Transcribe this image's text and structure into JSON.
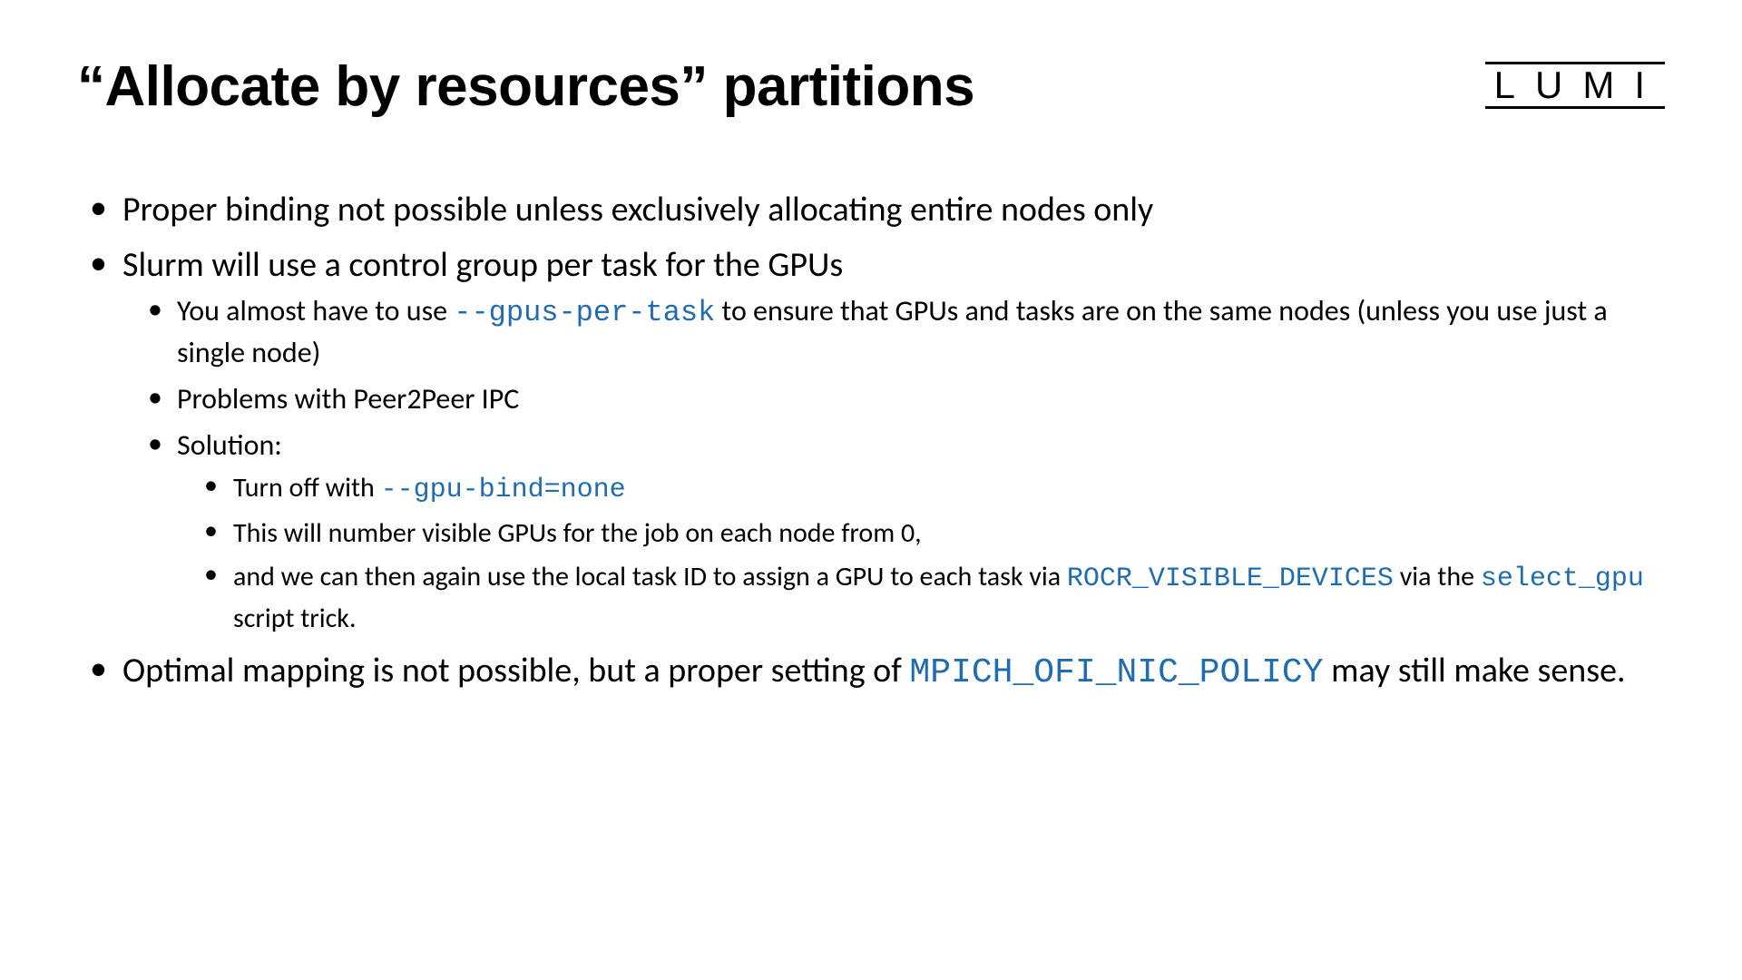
{
  "title": "“Allocate by resources” partitions",
  "logo": "LUMI",
  "colors": {
    "text": "#000000",
    "code": "#1f6cb0",
    "background": "#ffffff"
  },
  "typography": {
    "title_fontsize": 62,
    "l1_fontsize": 38,
    "l2_fontsize": 32,
    "l3_fontsize": 30,
    "body_family": "Calibri",
    "title_family": "Century Gothic",
    "code_family": "Consolas"
  },
  "bullets": {
    "b1": "Proper binding not possible unless exclusively allocating entire nodes only",
    "b2": "Slurm will use a control group per task for the GPUs",
    "b2_1_a": "You almost have to use ",
    "b2_1_code": "--gpus-per-task",
    "b2_1_b": " to ensure that GPUs and tasks are on the same nodes (unless you use just a single node)",
    "b2_2": "Problems with Peer2Peer IPC",
    "b2_3": "Solution:",
    "b2_3_1_a": "Turn off with ",
    "b2_3_1_code": "--gpu-bind=none",
    "b2_3_2": "This will number visible GPUs for the job on each node from 0,",
    "b2_3_3_a": "and we can then again use the local task ID to assign a GPU to each task via ",
    "b2_3_3_code1": "ROCR_VISIBLE_DEVICES",
    "b2_3_3_b": " via the ",
    "b2_3_3_code2": "select_gpu",
    "b2_3_3_c": " script trick.",
    "b3_a": "Optimal mapping is not possible, but a proper setting of ",
    "b3_code": "MPICH_OFI_NIC_POLICY",
    "b3_b": " may still make sense."
  }
}
